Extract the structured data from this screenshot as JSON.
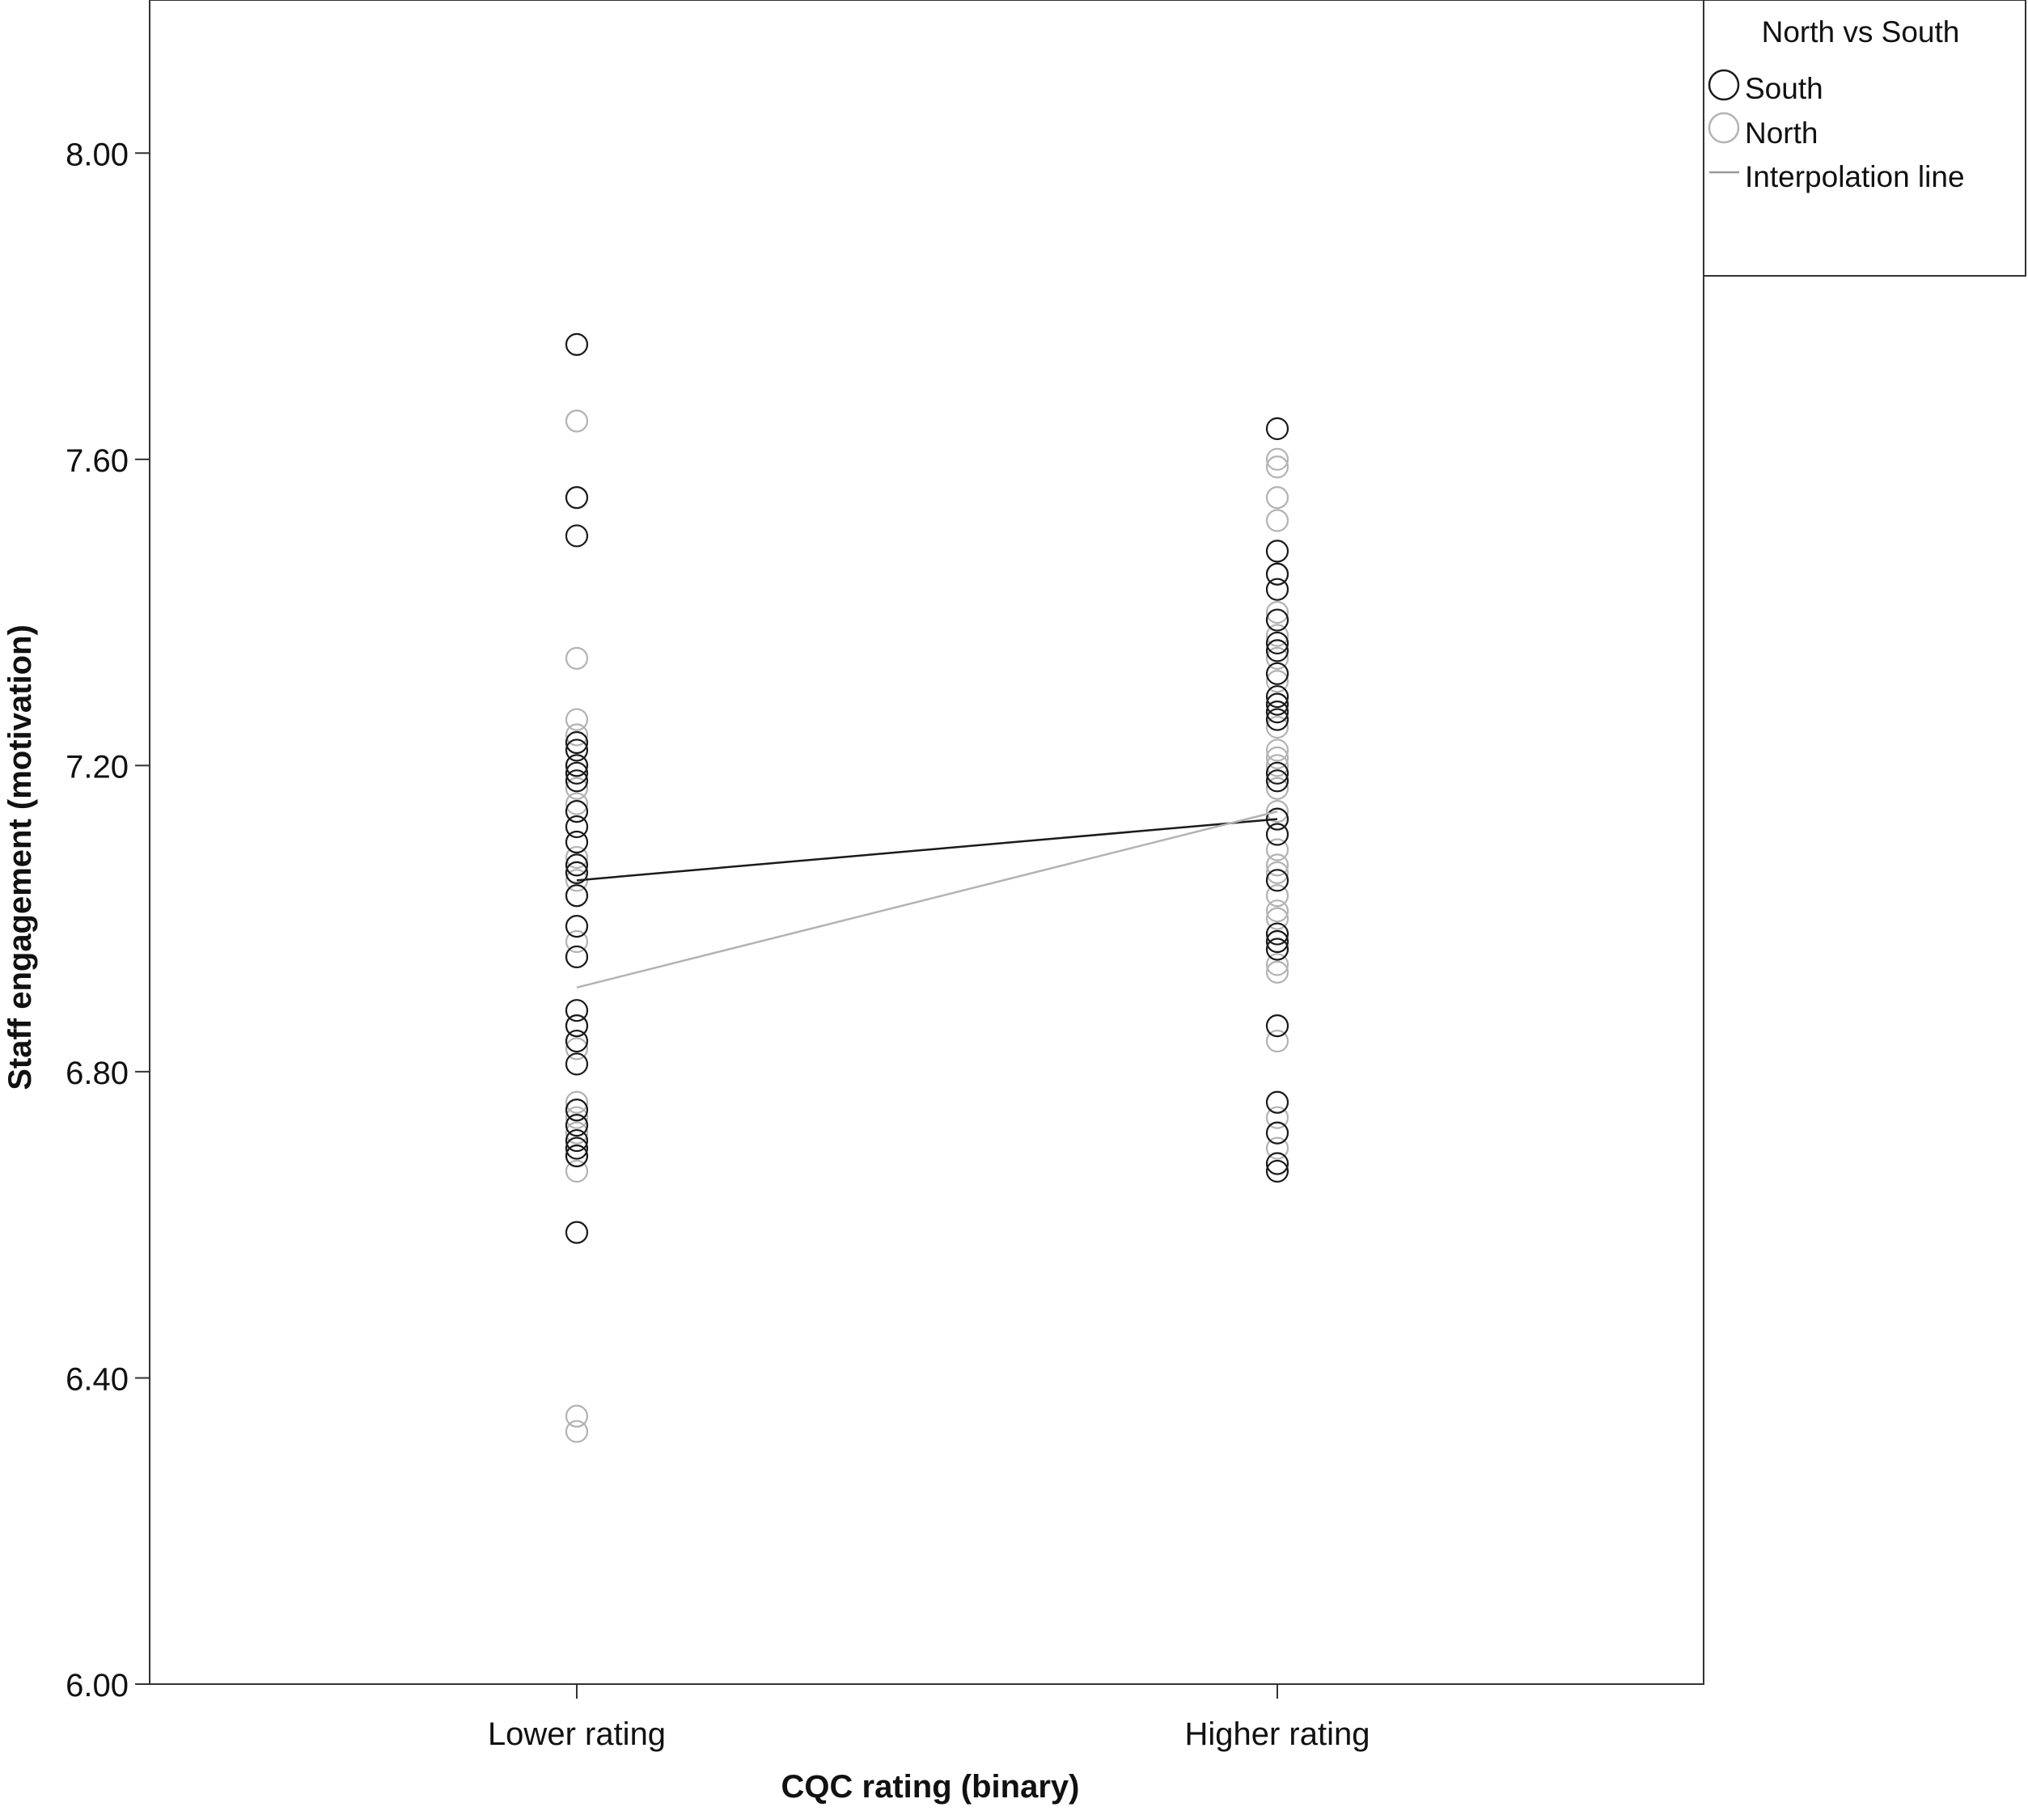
{
  "chart_data": {
    "type": "scatter",
    "title": "",
    "xlabel": "CQC rating (binary)",
    "ylabel": "Staff engagement (motivation)",
    "categories": [
      "Lower rating",
      "Higher rating"
    ],
    "ylim": [
      6.0,
      8.2
    ],
    "yticks": [
      "6.00",
      "6.40",
      "6.80",
      "7.20",
      "7.60",
      "8.00"
    ],
    "ytick_values": [
      6.0,
      6.4,
      6.8,
      7.2,
      7.6,
      8.0
    ],
    "grid": false,
    "legend": {
      "title": "North vs South",
      "placement": "top-right, outside plot",
      "entries": [
        "South",
        "North",
        "Interpolation line"
      ]
    },
    "series": [
      {
        "name": "South",
        "color": "#1a1a1a",
        "marker": "open-circle",
        "points": {
          "Lower rating": [
            7.75,
            7.55,
            7.5,
            7.23,
            7.22,
            7.2,
            7.19,
            7.18,
            7.14,
            7.12,
            7.1,
            7.07,
            7.06,
            7.03,
            6.99,
            6.95,
            6.88,
            6.86,
            6.84,
            6.81,
            6.75,
            6.73,
            6.71,
            6.7,
            6.69,
            6.59
          ],
          "Higher rating": [
            7.64,
            7.48,
            7.45,
            7.43,
            7.39,
            7.36,
            7.35,
            7.32,
            7.29,
            7.28,
            7.27,
            7.26,
            7.19,
            7.18,
            7.13,
            7.11,
            7.05,
            6.98,
            6.97,
            6.96,
            6.86,
            6.76,
            6.72,
            6.68,
            6.67
          ]
        },
        "interpolation_means": {
          "Lower rating": 7.05,
          "Higher rating": 7.13
        }
      },
      {
        "name": "North",
        "color": "#b3b3b3",
        "marker": "open-circle",
        "points": {
          "Lower rating": [
            7.65,
            7.34,
            7.26,
            7.24,
            7.2,
            7.17,
            7.15,
            7.08,
            7.05,
            6.97,
            6.95,
            6.86,
            6.83,
            6.76,
            6.74,
            6.72,
            6.69,
            6.67,
            6.35,
            6.33
          ],
          "Higher rating": [
            7.6,
            7.59,
            7.55,
            7.52,
            7.45,
            7.4,
            7.37,
            7.34,
            7.31,
            7.25,
            7.22,
            7.21,
            7.2,
            7.17,
            7.14,
            7.09,
            7.07,
            7.06,
            7.03,
            7.01,
            7.0,
            6.97,
            6.94,
            6.93,
            6.84,
            6.74,
            6.7
          ]
        },
        "interpolation_means": {
          "Lower rating": 6.91,
          "Higher rating": 7.14
        }
      }
    ]
  }
}
